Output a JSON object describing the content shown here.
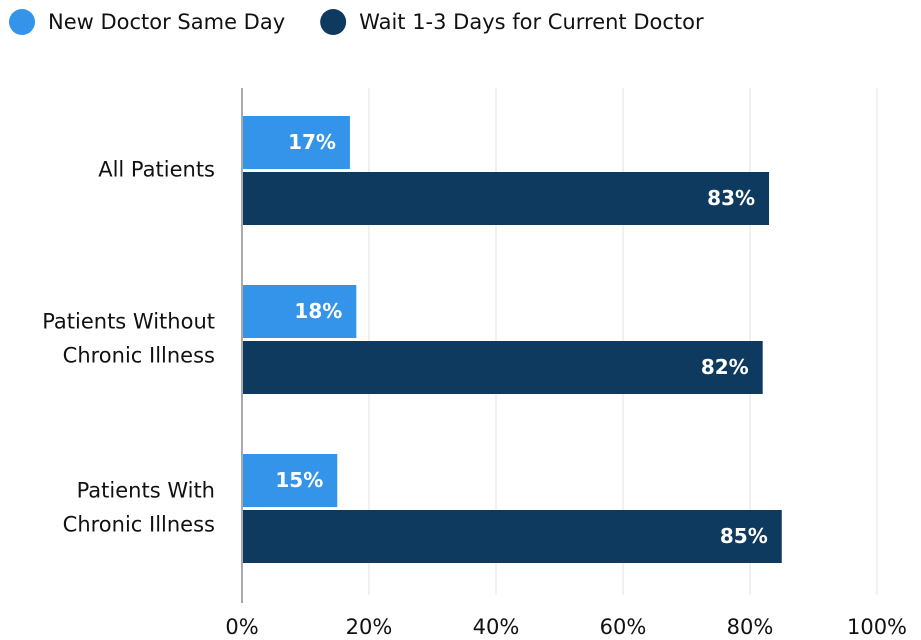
{
  "chart_data": {
    "type": "bar",
    "orientation": "horizontal",
    "categories": [
      "All Patients",
      "Patients Without\nChronic Illness",
      "Patients With\nChronic Illness"
    ],
    "series": [
      {
        "name": "New Doctor Same Day",
        "color": "#3394ea",
        "values": [
          17,
          18,
          15
        ],
        "value_labels": [
          "17%",
          "18%",
          "15%"
        ]
      },
      {
        "name": "Wait 1-3 Days for Current Doctor",
        "color": "#0f3a60",
        "values": [
          83,
          82,
          85
        ],
        "value_labels": [
          "83%",
          "82%",
          "85%"
        ]
      }
    ],
    "xlim": [
      0,
      100
    ],
    "xticks": [
      {
        "value": 0,
        "label": "0%"
      },
      {
        "value": 20,
        "label": "20%"
      },
      {
        "value": 40,
        "label": "40%"
      },
      {
        "value": 60,
        "label": "60%"
      },
      {
        "value": 80,
        "label": "80%"
      },
      {
        "value": 100,
        "label": "100%"
      }
    ],
    "grid": true,
    "legend": "top"
  }
}
